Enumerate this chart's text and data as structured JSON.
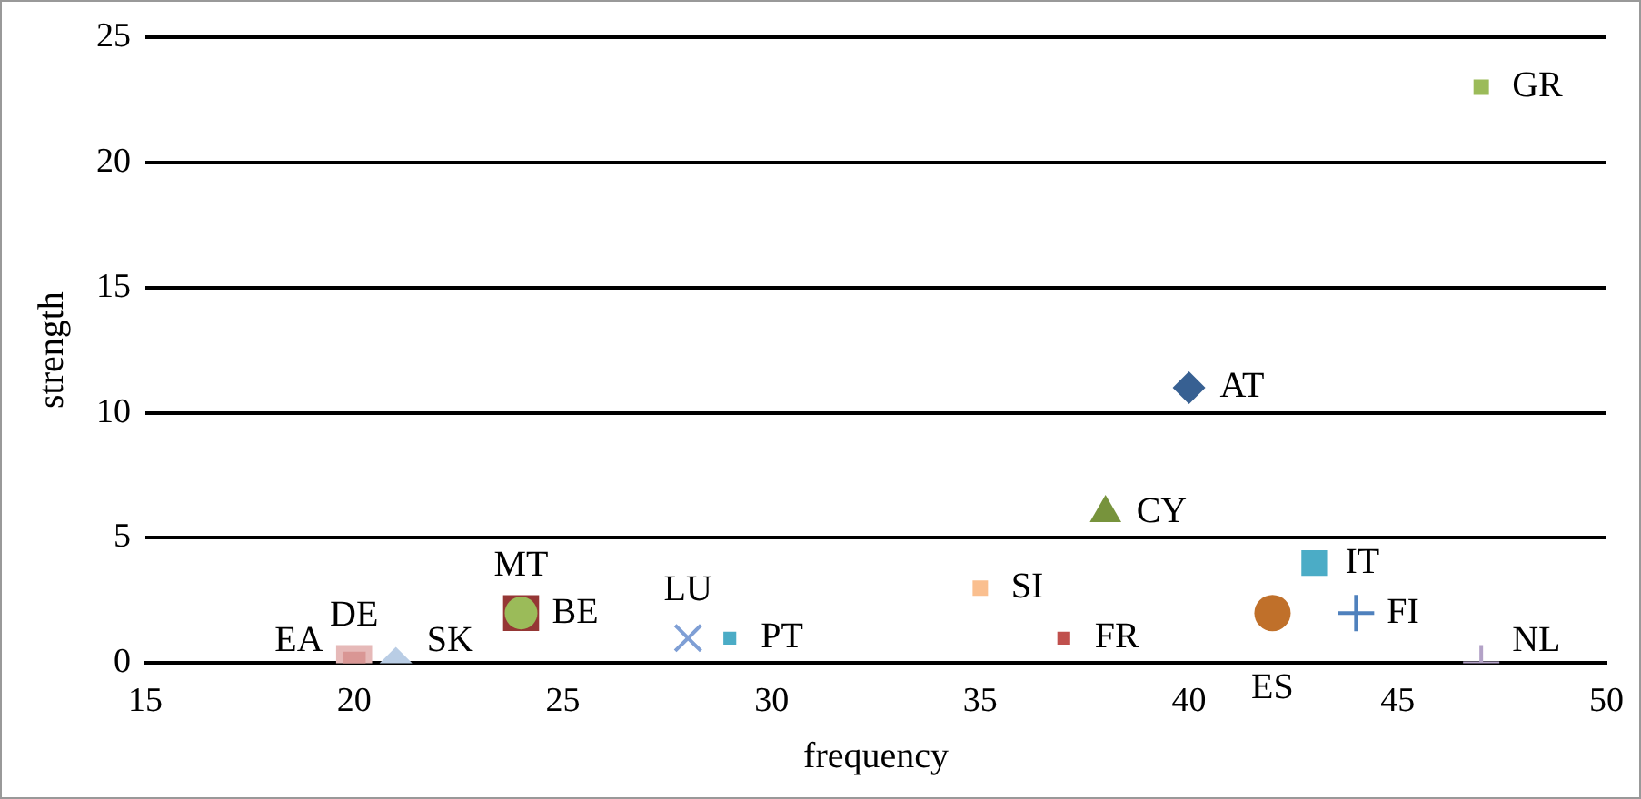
{
  "chart_data": {
    "type": "scatter",
    "xlabel": "frequency",
    "ylabel": "strength",
    "xlim": [
      15,
      50
    ],
    "xticks": [
      15,
      20,
      25,
      30,
      35,
      40,
      45,
      50
    ],
    "ylim": [
      0,
      25
    ],
    "yticks": [
      0,
      5,
      10,
      15,
      20,
      25
    ],
    "grid": "y",
    "series": [
      {
        "name": "GR",
        "color": "#9bbb59",
        "marker": "square",
        "x": [
          47
        ],
        "values": [
          23
        ]
      },
      {
        "name": "AT",
        "color": "#376092",
        "marker": "diamond",
        "x": [
          40
        ],
        "values": [
          11
        ]
      },
      {
        "name": "CY",
        "color": "#77933c",
        "marker": "triangle",
        "x": [
          38
        ],
        "values": [
          6
        ]
      },
      {
        "name": "IT",
        "color": "#4bacc6",
        "marker": "square",
        "x": [
          43
        ],
        "values": [
          4
        ]
      },
      {
        "name": "SI",
        "color": "#fabf8f",
        "marker": "square",
        "x": [
          35
        ],
        "values": [
          3
        ]
      },
      {
        "name": "ES",
        "color": "#c0702a",
        "marker": "circle",
        "x": [
          42
        ],
        "values": [
          2
        ]
      },
      {
        "name": "FI",
        "color": "#4f81bd",
        "marker": "cross",
        "x": [
          44
        ],
        "values": [
          2
        ]
      },
      {
        "name": "FR",
        "color": "#c0504d",
        "marker": "square",
        "x": [
          37
        ],
        "values": [
          1
        ]
      },
      {
        "name": "NL",
        "color": "#b3a2c7",
        "marker": "cross",
        "x": [
          47
        ],
        "values": [
          0
        ]
      },
      {
        "name": "PT",
        "color": "#4bacc6",
        "marker": "square",
        "x": [
          29
        ],
        "values": [
          1
        ]
      },
      {
        "name": "LU",
        "color": "#7f9fd5",
        "marker": "x",
        "x": [
          28
        ],
        "values": [
          1
        ]
      },
      {
        "name": "MT",
        "color": "#953735",
        "marker": "square",
        "x": [
          24
        ],
        "values": [
          2
        ]
      },
      {
        "name": "BE",
        "color": "#9bbb59",
        "marker": "circle",
        "x": [
          24
        ],
        "values": [
          2
        ]
      },
      {
        "name": "DE",
        "color": "#e6b9b8",
        "marker": "square",
        "x": [
          20
        ],
        "values": [
          0
        ]
      },
      {
        "name": "EA",
        "color": "#d99694",
        "marker": "square",
        "x": [
          20
        ],
        "values": [
          0
        ]
      },
      {
        "name": "SK",
        "color": "#b9cde5",
        "marker": "diamond",
        "x": [
          21
        ],
        "values": [
          0
        ]
      }
    ]
  }
}
